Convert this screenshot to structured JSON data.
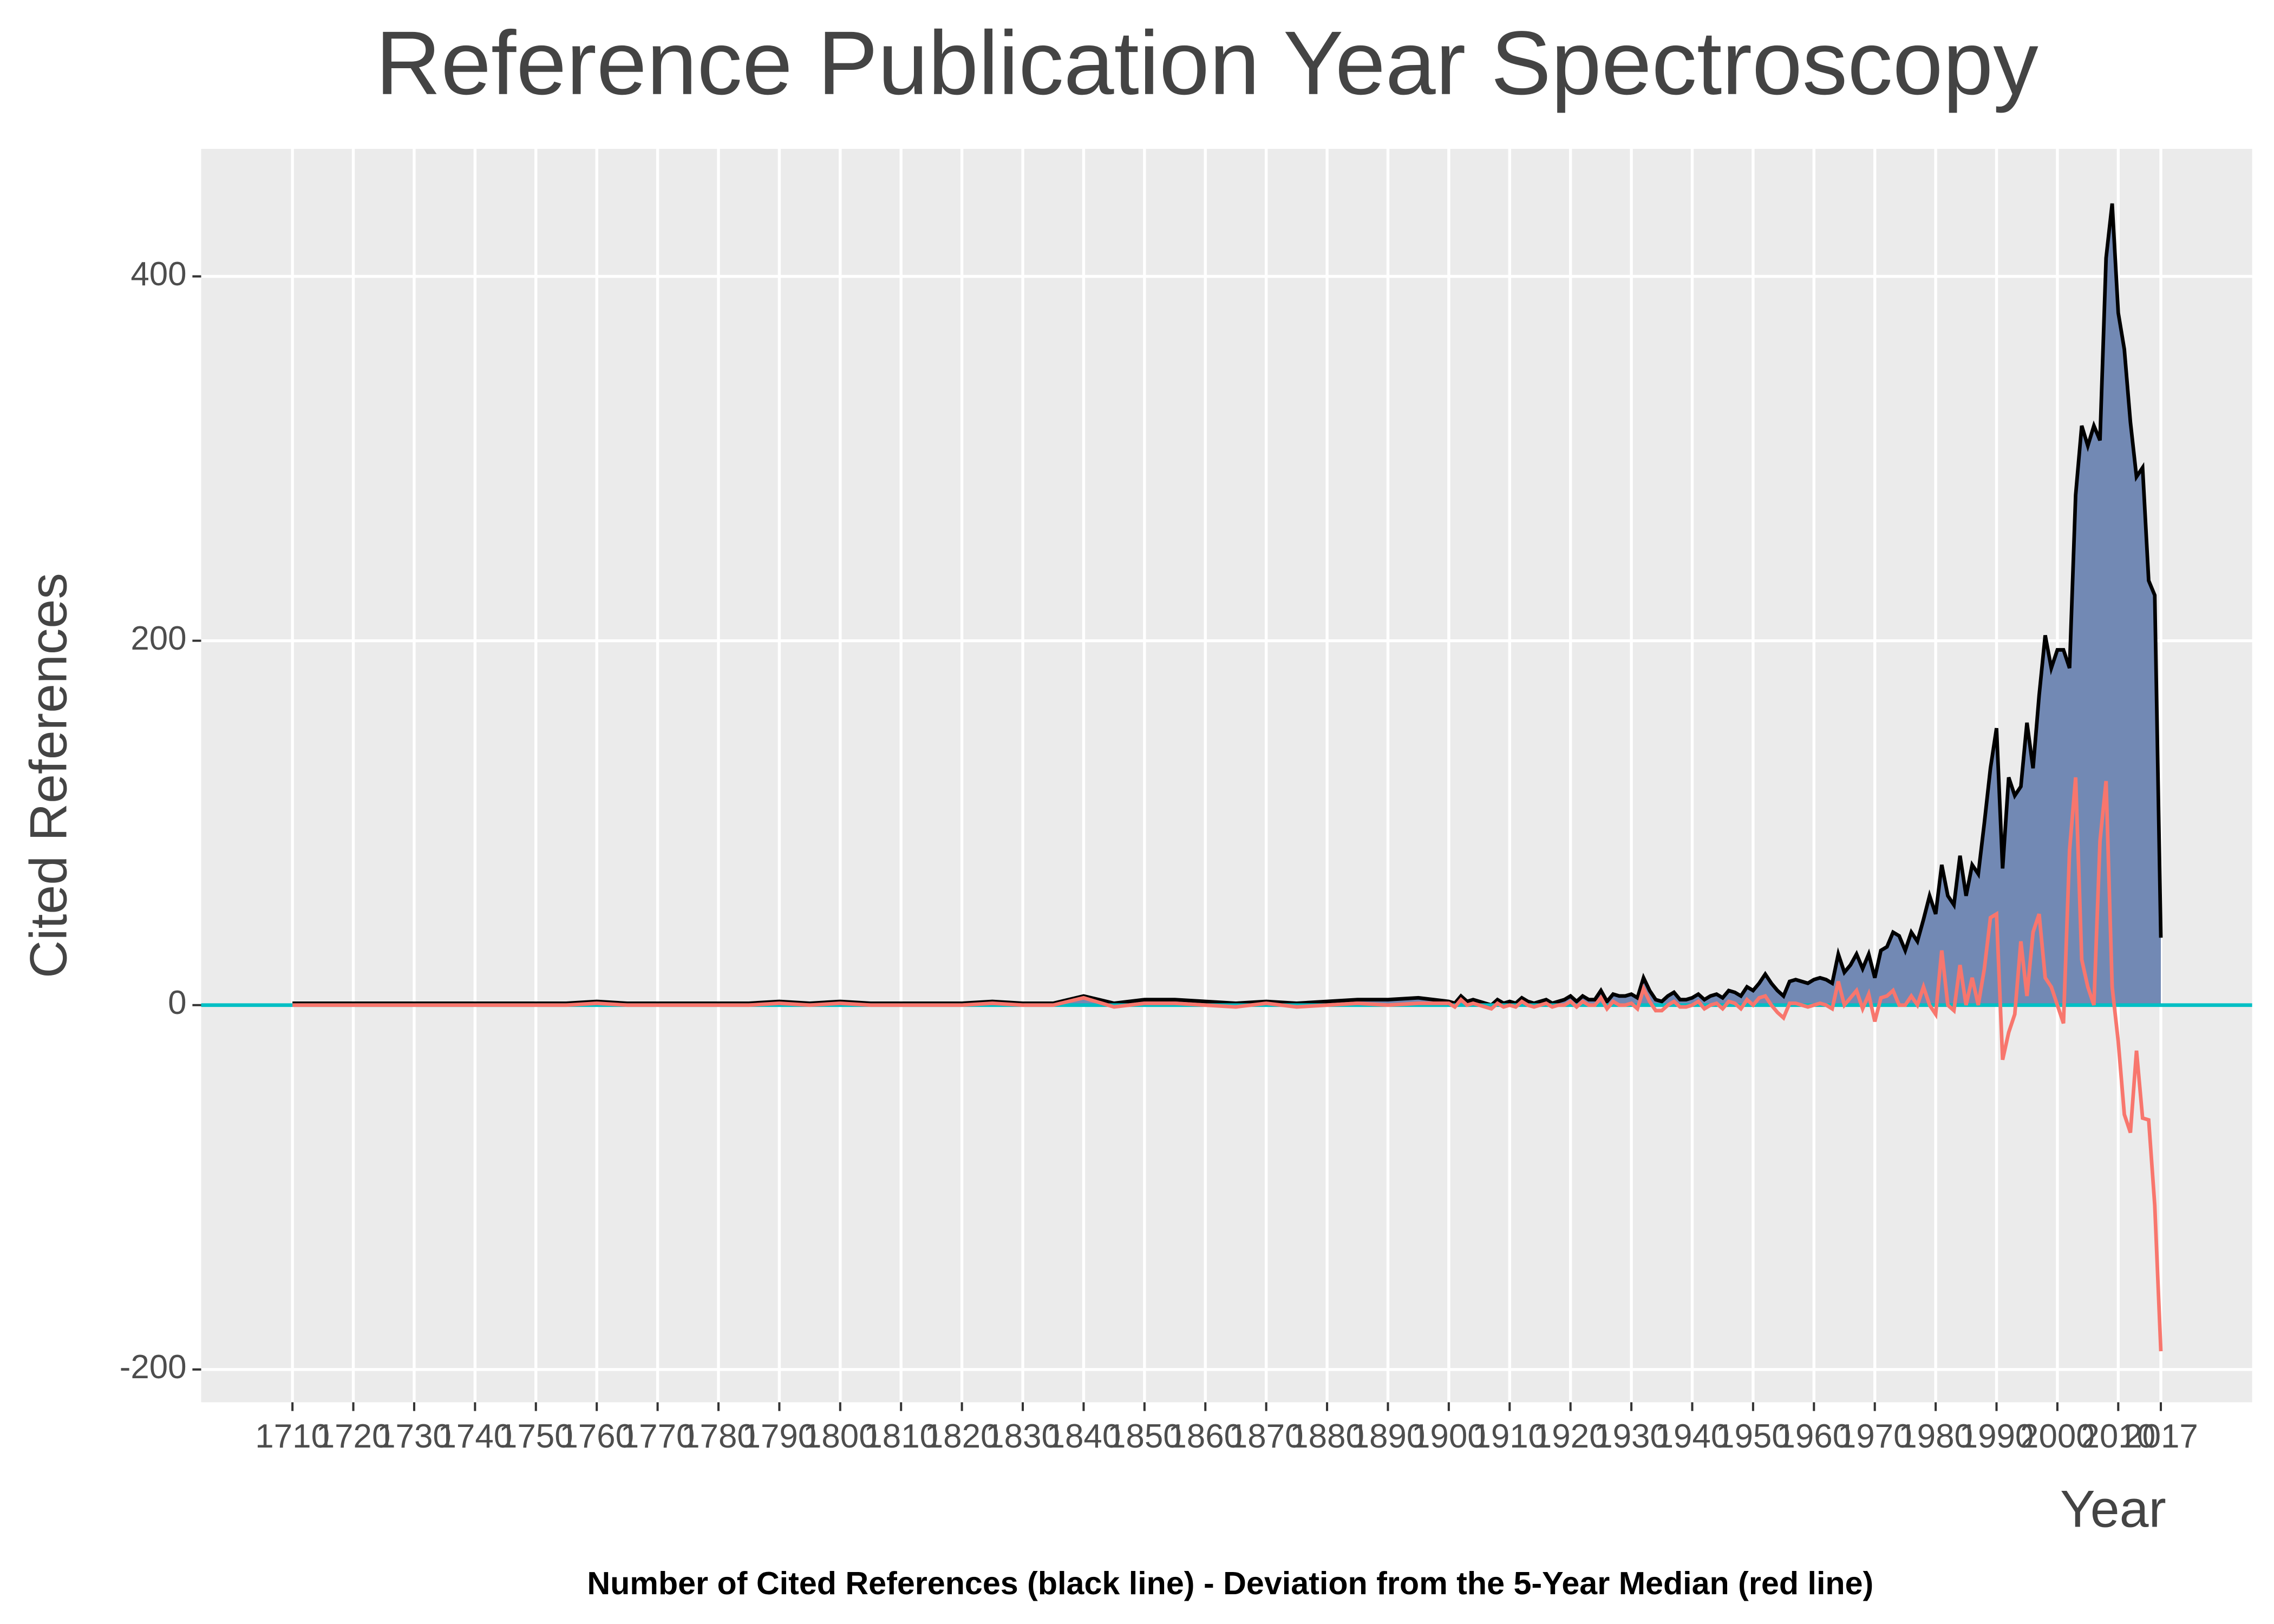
{
  "chart_data": {
    "type": "area",
    "title": "Reference Publication Year Spectroscopy",
    "x_label": "Year",
    "y_label": "Cited References",
    "caption": "Number of Cited References (black line) - Deviation from the 5-Year Median (red line)",
    "x": [
      1710,
      1715,
      1720,
      1725,
      1730,
      1735,
      1740,
      1745,
      1750,
      1755,
      1760,
      1765,
      1770,
      1775,
      1780,
      1785,
      1790,
      1795,
      1800,
      1805,
      1810,
      1815,
      1820,
      1825,
      1830,
      1835,
      1840,
      1845,
      1850,
      1855,
      1860,
      1865,
      1870,
      1875,
      1880,
      1885,
      1890,
      1895,
      1900,
      1901,
      1902,
      1903,
      1904,
      1905,
      1906,
      1907,
      1908,
      1909,
      1910,
      1911,
      1912,
      1913,
      1914,
      1915,
      1916,
      1917,
      1918,
      1919,
      1920,
      1921,
      1922,
      1923,
      1924,
      1925,
      1926,
      1927,
      1928,
      1929,
      1930,
      1931,
      1932,
      1933,
      1934,
      1935,
      1936,
      1937,
      1938,
      1939,
      1940,
      1941,
      1942,
      1943,
      1944,
      1945,
      1946,
      1947,
      1948,
      1949,
      1950,
      1951,
      1952,
      1953,
      1954,
      1955,
      1956,
      1957,
      1958,
      1959,
      1960,
      1961,
      1962,
      1963,
      1964,
      1965,
      1966,
      1967,
      1968,
      1969,
      1970,
      1971,
      1972,
      1973,
      1974,
      1975,
      1976,
      1977,
      1978,
      1979,
      1980,
      1981,
      1982,
      1983,
      1984,
      1985,
      1986,
      1987,
      1988,
      1989,
      1990,
      1991,
      1992,
      1993,
      1994,
      1995,
      1996,
      1997,
      1998,
      1999,
      2000,
      2001,
      2002,
      2003,
      2004,
      2005,
      2006,
      2007,
      2008,
      2009,
      2010,
      2011,
      2012,
      2013,
      2014,
      2015,
      2016,
      2017
    ],
    "series": [
      {
        "type": "area",
        "color": "#000000",
        "fill": "#7289b4",
        "values": [
          1,
          1,
          1,
          1,
          1,
          1,
          1,
          1,
          1,
          1,
          2,
          1,
          1,
          1,
          1,
          1,
          2,
          1,
          2,
          1,
          1,
          1,
          1,
          2,
          1,
          1,
          5,
          1,
          3,
          3,
          2,
          1,
          2,
          1,
          2,
          3,
          3,
          4,
          2,
          1,
          5,
          2,
          3,
          2,
          1,
          0,
          3,
          1,
          2,
          1,
          4,
          2,
          1,
          2,
          3,
          1,
          2,
          3,
          5,
          2,
          5,
          3,
          3,
          8,
          2,
          6,
          5,
          5,
          6,
          4,
          15,
          8,
          3,
          2,
          5,
          7,
          3,
          3,
          4,
          6,
          3,
          5,
          6,
          4,
          8,
          7,
          5,
          10,
          8,
          12,
          17,
          12,
          8,
          5,
          13,
          14,
          13,
          12,
          14,
          15,
          14,
          12,
          28,
          18,
          22,
          28,
          20,
          28,
          15,
          30,
          32,
          40,
          38,
          30,
          40,
          35,
          47,
          60,
          50,
          77,
          60,
          55,
          82,
          60,
          77,
          72,
          100,
          130,
          152,
          75,
          125,
          115,
          120,
          155,
          130,
          170,
          203,
          185,
          195,
          195,
          185,
          280,
          318,
          307,
          318,
          310,
          410,
          440,
          380,
          360,
          320,
          290,
          295,
          233,
          225,
          37
        ]
      },
      {
        "type": "line",
        "color": "#f8766d",
        "values": [
          0,
          0,
          0,
          0,
          0,
          0,
          0,
          0,
          0,
          0,
          1,
          0,
          0,
          0,
          0,
          0,
          1,
          0,
          1,
          0,
          0,
          0,
          0,
          1,
          0,
          0,
          4,
          -1,
          1,
          1,
          0,
          -1,
          1,
          -1,
          0,
          1,
          0,
          1,
          1,
          -1,
          3,
          0,
          1,
          0,
          -1,
          -2,
          1,
          -1,
          0,
          -1,
          2,
          0,
          -1,
          0,
          1,
          -1,
          0,
          0,
          2,
          -1,
          2,
          0,
          0,
          4,
          -2,
          2,
          0,
          0,
          1,
          -2,
          9,
          2,
          -3,
          -3,
          0,
          2,
          -1,
          -1,
          0,
          2,
          -2,
          0,
          1,
          -2,
          2,
          1,
          -2,
          3,
          0,
          4,
          5,
          0,
          -4,
          -7,
          1,
          1,
          0,
          -1,
          0,
          1,
          0,
          -2,
          13,
          0,
          4,
          8,
          -2,
          6,
          -9,
          4,
          5,
          8,
          0,
          0,
          5,
          0,
          10,
          0,
          -5,
          30,
          0,
          -3,
          22,
          0,
          15,
          0,
          20,
          48,
          50,
          -30,
          -15,
          -5,
          35,
          5,
          40,
          50,
          15,
          10,
          0,
          -10,
          85,
          125,
          25,
          10,
          0,
          90,
          123,
          10,
          -20,
          -60,
          -70,
          -25,
          -62,
          -63,
          -110,
          -190
        ]
      }
    ],
    "zero_line_color": "#00bfc4",
    "xlim": [
      1695,
      2032
    ],
    "xticks": [
      1710,
      1720,
      1730,
      1740,
      1750,
      1760,
      1770,
      1780,
      1790,
      1800,
      1810,
      1820,
      1830,
      1840,
      1850,
      1860,
      1870,
      1880,
      1890,
      1900,
      1910,
      1920,
      1930,
      1940,
      1950,
      1960,
      1970,
      1980,
      1990,
      2000,
      2010,
      2017
    ],
    "ylim": [
      -218,
      470
    ],
    "yticks": [
      -200,
      0,
      200,
      400
    ],
    "grid": true
  }
}
